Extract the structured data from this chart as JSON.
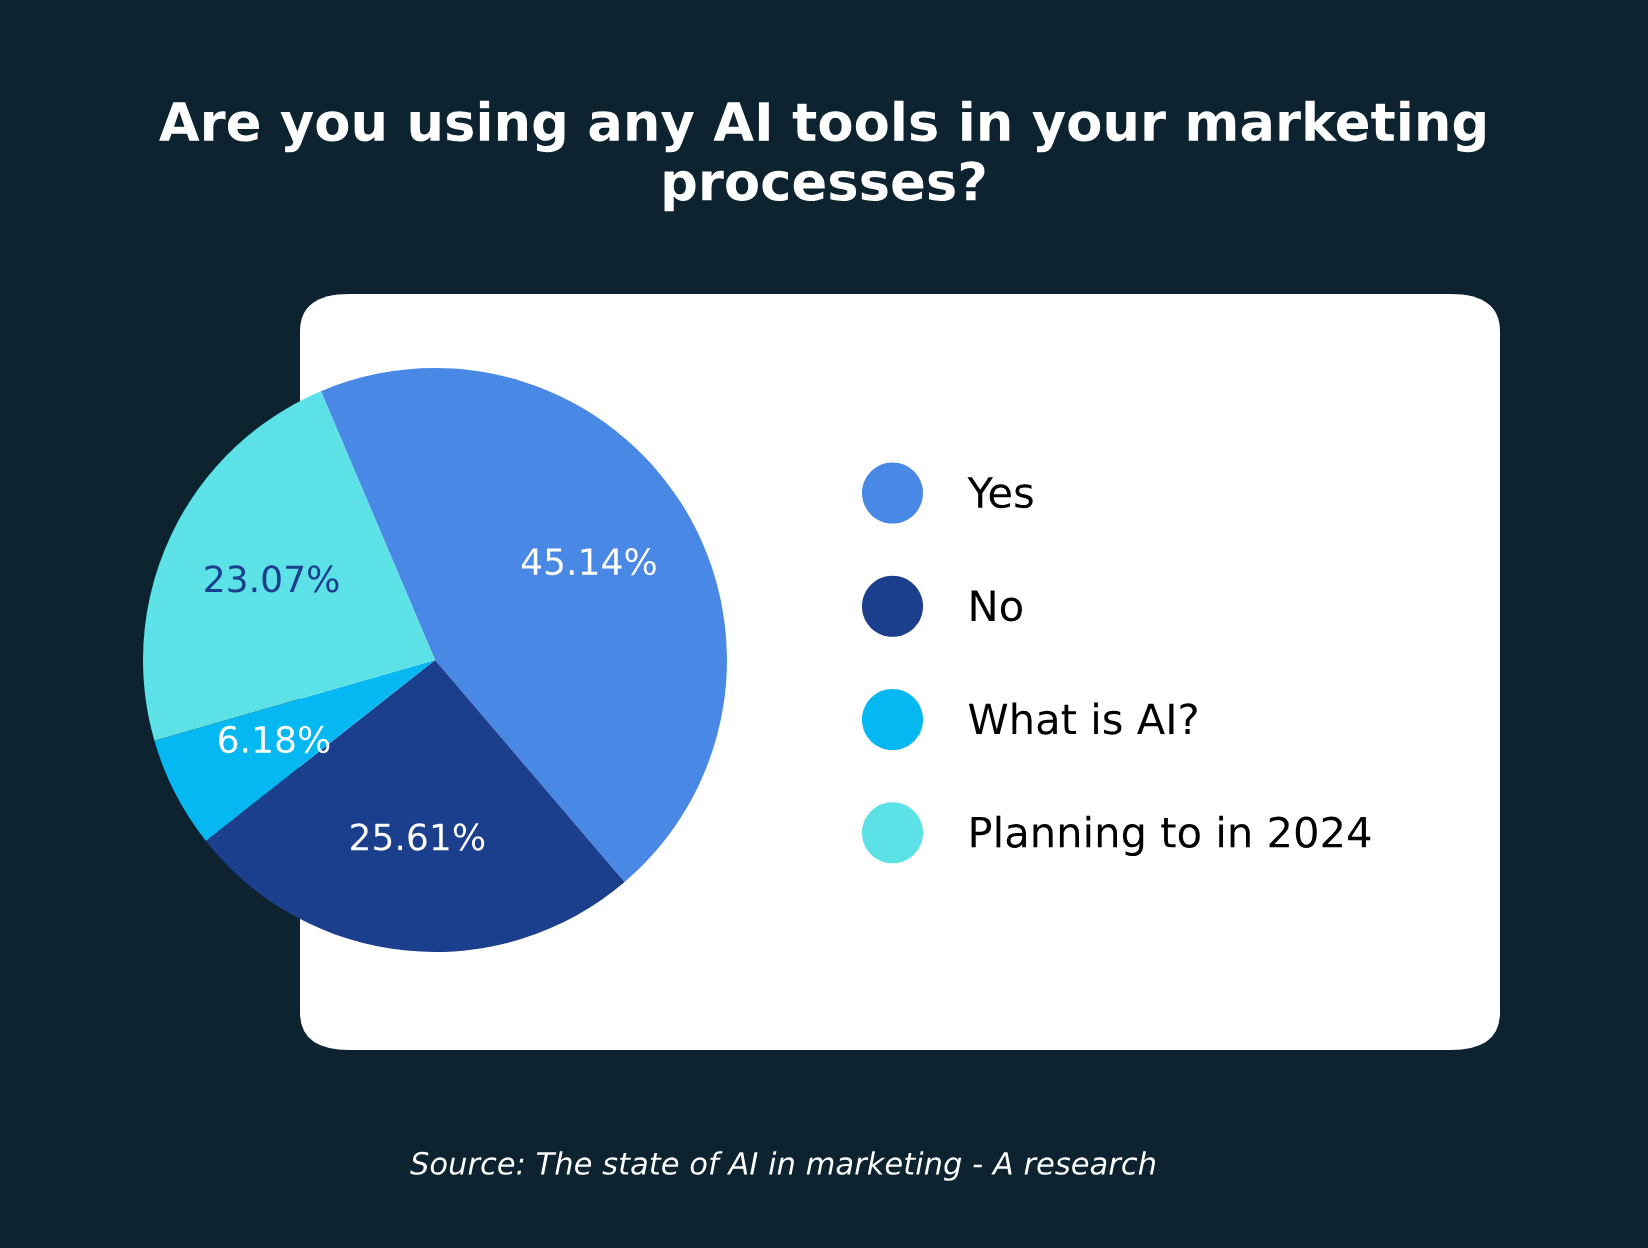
{
  "chart_data": {
    "type": "pie",
    "title": "Are you using any AI tools in your marketing processes?",
    "categories": [
      "Yes",
      "No",
      "What is AI?",
      "Planning to in 2024"
    ],
    "values": [
      45.14,
      25.61,
      6.18,
      23.07
    ],
    "colors": [
      "#4a88e6",
      "#1b3f8c",
      "#05b8f2",
      "#5ce1e6"
    ],
    "value_labels": [
      "45.14%",
      "25.61%",
      "6.18%",
      "23.07%"
    ],
    "legend": "right",
    "annotations": [
      "Source: The state of AI in marketing - A research"
    ]
  }
}
